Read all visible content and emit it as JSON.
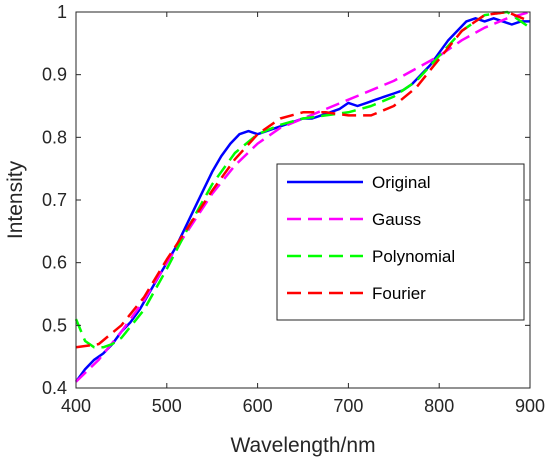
{
  "chart_data": {
    "type": "line",
    "title": "",
    "xlabel": "Wavelength/nm",
    "ylabel": "Intensity",
    "xlim": [
      400,
      900
    ],
    "ylim": [
      0.4,
      1.0
    ],
    "xticks": [
      400,
      500,
      600,
      700,
      800,
      900
    ],
    "yticks": [
      0.4,
      0.5,
      0.6,
      0.7,
      0.8,
      0.9,
      1.0
    ],
    "xtick_labels": [
      "400",
      "500",
      "600",
      "700",
      "800",
      "900"
    ],
    "ytick_labels": [
      "0.4",
      "0.5",
      "0.6",
      "0.7",
      "0.8",
      "0.9",
      "1"
    ],
    "grid": false,
    "legend_position": "center-right",
    "series": [
      {
        "name": "Original",
        "color": "#0000FF",
        "style": "solid",
        "x": [
          400,
          410,
          420,
          430,
          440,
          450,
          460,
          470,
          480,
          490,
          500,
          510,
          520,
          530,
          540,
          550,
          560,
          570,
          580,
          590,
          600,
          610,
          620,
          630,
          640,
          650,
          660,
          670,
          680,
          690,
          700,
          710,
          720,
          730,
          740,
          750,
          760,
          770,
          780,
          790,
          800,
          810,
          820,
          830,
          840,
          850,
          860,
          870,
          880,
          890,
          900
        ],
        "y": [
          0.41,
          0.43,
          0.445,
          0.455,
          0.47,
          0.49,
          0.505,
          0.525,
          0.55,
          0.575,
          0.6,
          0.625,
          0.655,
          0.685,
          0.715,
          0.745,
          0.77,
          0.79,
          0.805,
          0.81,
          0.805,
          0.81,
          0.815,
          0.82,
          0.825,
          0.83,
          0.83,
          0.835,
          0.84,
          0.845,
          0.855,
          0.85,
          0.855,
          0.86,
          0.865,
          0.87,
          0.875,
          0.885,
          0.9,
          0.915,
          0.935,
          0.955,
          0.97,
          0.985,
          0.99,
          0.985,
          0.99,
          0.985,
          0.98,
          0.985,
          0.985
        ]
      },
      {
        "name": "Gauss",
        "color": "#FF00FF",
        "style": "dashed",
        "x": [
          400,
          425,
          450,
          475,
          500,
          525,
          550,
          575,
          600,
          625,
          650,
          675,
          700,
          725,
          750,
          775,
          800,
          825,
          850,
          875,
          900
        ],
        "y": [
          0.41,
          0.445,
          0.49,
          0.54,
          0.6,
          0.655,
          0.71,
          0.755,
          0.79,
          0.815,
          0.83,
          0.845,
          0.86,
          0.875,
          0.89,
          0.91,
          0.93,
          0.955,
          0.975,
          0.99,
          1.0
        ]
      },
      {
        "name": "Polynomial",
        "color": "#00FF00",
        "style": "dashed",
        "x": [
          400,
          410,
          420,
          430,
          440,
          450,
          475,
          500,
          525,
          550,
          575,
          600,
          625,
          650,
          675,
          700,
          725,
          750,
          775,
          800,
          825,
          850,
          875,
          900
        ],
        "y": [
          0.51,
          0.475,
          0.465,
          0.465,
          0.47,
          0.48,
          0.525,
          0.59,
          0.66,
          0.725,
          0.775,
          0.805,
          0.82,
          0.83,
          0.835,
          0.84,
          0.85,
          0.865,
          0.89,
          0.93,
          0.97,
          0.995,
          1.0,
          0.975
        ]
      },
      {
        "name": "Fourier",
        "color": "#FF0000",
        "style": "dashed",
        "x": [
          400,
          425,
          450,
          475,
          500,
          525,
          550,
          575,
          600,
          625,
          650,
          675,
          700,
          725,
          750,
          775,
          800,
          825,
          850,
          875,
          900
        ],
        "y": [
          0.465,
          0.47,
          0.5,
          0.545,
          0.605,
          0.66,
          0.715,
          0.765,
          0.805,
          0.83,
          0.84,
          0.84,
          0.835,
          0.835,
          0.85,
          0.88,
          0.925,
          0.97,
          0.995,
          1.0,
          0.985
        ]
      }
    ]
  }
}
